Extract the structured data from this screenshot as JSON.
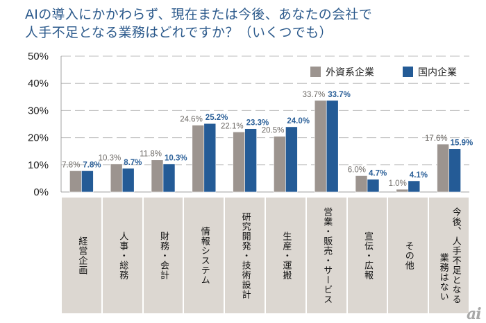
{
  "chart_data": {
    "type": "bar",
    "title": "AIの導入にかかわらず、現在または今後、あなたの会社で人手不足となる業務はどれですか？（いくつでも）",
    "title_lines": [
      "AIの導入にかかわらず、現在または今後、あなたの会社で",
      "人手不足となる業務はどれですか？（いくつでも）"
    ],
    "xlabel": "",
    "ylabel": "",
    "ylim": [
      0,
      50
    ],
    "yticks": [
      0,
      10,
      20,
      30,
      40,
      50
    ],
    "ytick_labels": [
      "0%",
      "10%",
      "20%",
      "30%",
      "40%",
      "50%"
    ],
    "grid": true,
    "legend_position": "top-right",
    "categories": [
      [
        "経営企画"
      ],
      [
        "人事・総務"
      ],
      [
        "財務・会計"
      ],
      [
        "情報システム"
      ],
      [
        "研究開発・技術設計"
      ],
      [
        "生産・運搬"
      ],
      [
        "営業・販売・サービス"
      ],
      [
        "宣伝・広報"
      ],
      [
        "その他"
      ],
      [
        "今後、人手不足となる",
        "業務はない"
      ]
    ],
    "series": [
      {
        "name": "外資系企業",
        "color": "#9c948f",
        "label_color": "#6e6a66",
        "values": [
          7.8,
          10.3,
          11.8,
          24.6,
          22.1,
          20.5,
          33.7,
          6.0,
          1.0,
          17.6
        ],
        "labels": [
          "7.8%",
          "10.3%",
          "11.8%",
          "24.6%",
          "22.1%",
          "20.5%",
          "33.7%",
          "6.0%",
          "1.0%",
          "17.6%"
        ]
      },
      {
        "name": "国内企業",
        "color": "#245b96",
        "label_color": "#2a5f98",
        "values": [
          7.8,
          8.7,
          10.3,
          25.2,
          23.3,
          24.0,
          33.7,
          4.7,
          4.1,
          15.9
        ],
        "labels": [
          "7.8%",
          "8.7%",
          "10.3%",
          "25.2%",
          "23.3%",
          "24.0%",
          "33.7%",
          "4.7%",
          "4.1%",
          "15.9%"
        ]
      }
    ]
  },
  "logo": {
    "text": "ai"
  }
}
